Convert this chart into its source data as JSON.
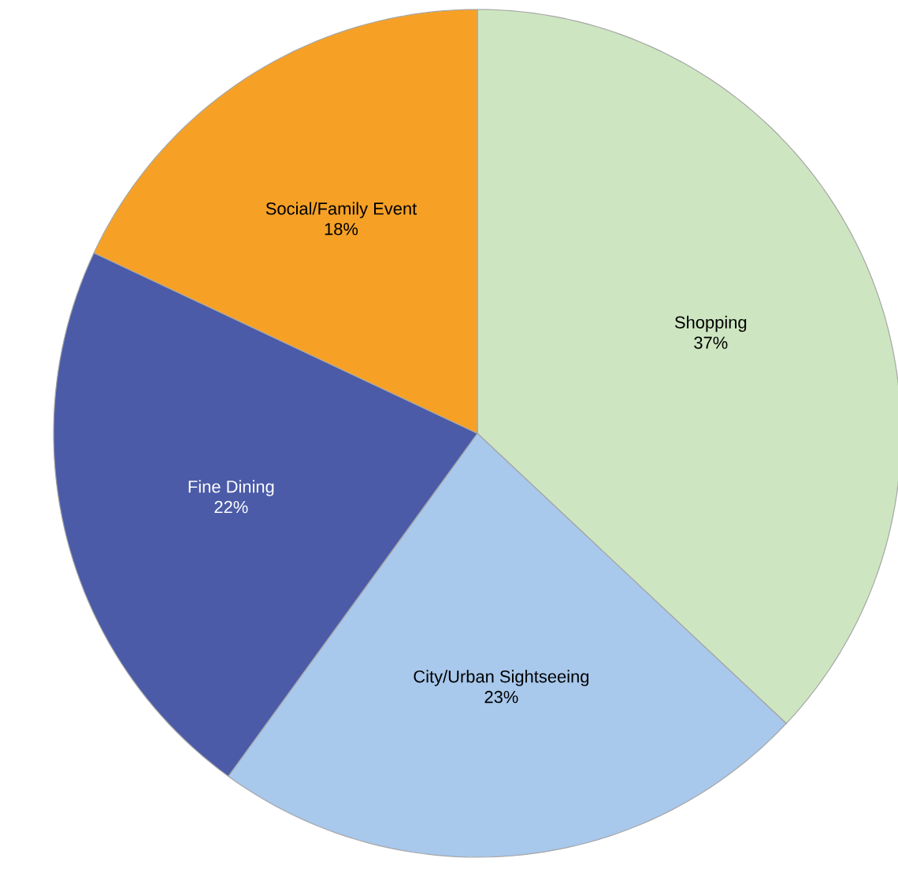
{
  "chart_data": {
    "type": "pie",
    "categories": [
      "Shopping",
      "City/Urban Sightseeing",
      "Fine Dining",
      "Social/Family Event"
    ],
    "values": [
      37,
      23,
      22,
      18
    ],
    "value_labels": [
      "37%",
      "23%",
      "22%",
      "18%"
    ],
    "colors": [
      "#cde6c1",
      "#a8c8ec",
      "#4b5ba8",
      "#f6a126"
    ]
  }
}
